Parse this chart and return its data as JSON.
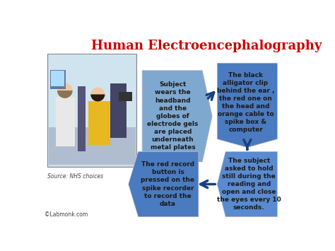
{
  "title": "Human Electroencephalography",
  "title_color": "#cc0000",
  "title_fontsize": 13,
  "bg_color": "#ffffff",
  "source_text": "Source: NHS choices",
  "copyright_text": "©Labmonk.com",
  "box1_text": "Subject\nwears the\nheadband\nand the\nglobes of\nelectrode gels\nare placed\nunderneath\nmetal plates",
  "box2_text": "The black\nalligator clip\nbehind the ear ,\nthe red one on\nthe head and\norange cable to\nspike box &\ncomputer",
  "box3_text": "The red record\nbutton is\npressed on the\nspike recorder\nto record the\ndata",
  "box4_text": "The subject\nasked to hold\nstill during the\nreading and\nopen and close\nthe eyes every 10\nseconds.",
  "box1_color": "#7fa8d0",
  "box2_color": "#4a7abf",
  "box3_color": "#4a7abf",
  "box4_color": "#5a8acf",
  "text_color": "#1a1a1a",
  "arrow_color": "#1a3f80",
  "fontsize": 6.5
}
